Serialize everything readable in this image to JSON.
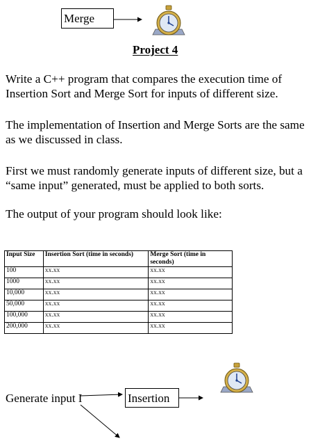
{
  "top": {
    "merge_box": "Merge",
    "icon": "stopwatch-icon"
  },
  "title": "Project 4",
  "paragraphs": [
    "Write a C++ program that compares the execution time of Insertion Sort and Merge Sort for inputs of different size.",
    "The implementation of Insertion and Merge Sorts are the same as we discussed in class.",
    "First we must randomly generate inputs of different size, but a “same input” generated, must be applied to both sorts.",
    "The output of your program should look like:"
  ],
  "table": {
    "headers": [
      "Input Size",
      "Insertion Sort (time in seconds)",
      "Merge Sort (time in seconds)"
    ],
    "rows": [
      [
        "100",
        "xx.xx",
        "xx.xx"
      ],
      [
        "1000",
        "xx.xx",
        "xx.xx"
      ],
      [
        "10,000",
        "xx.xx",
        "xx.xx"
      ],
      [
        "50,000",
        "xx.xx",
        "xx.xx"
      ],
      [
        "100,000",
        "xx.xx",
        "xx.xx"
      ],
      [
        "200,000",
        "xx.xx",
        "xx.xx"
      ]
    ]
  },
  "bottom": {
    "generate_label": "Generate input I",
    "insertion_box": "Insertion",
    "icon": "stopwatch-icon"
  }
}
